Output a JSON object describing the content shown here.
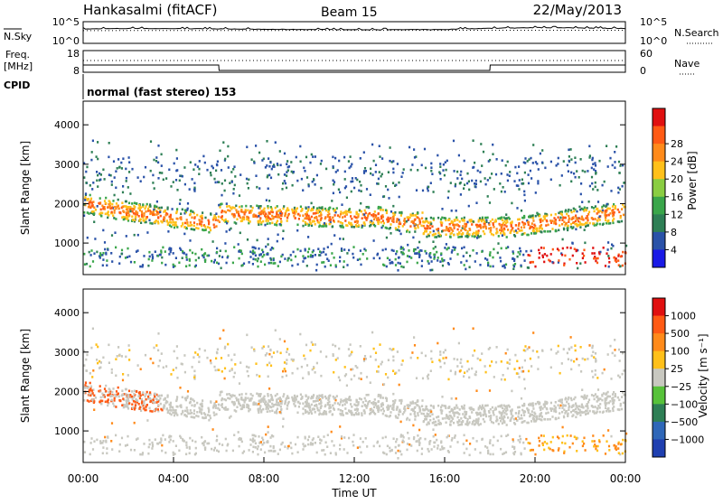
{
  "header": {
    "station": "Hankasalmi (fitACF)",
    "beam": "Beam 15",
    "date": "22/May/2013"
  },
  "left_labels": {
    "nsky": "N.Sky",
    "freq": "Freq.",
    "freq_unit": "[MHz]",
    "cpid": "CPID"
  },
  "right_labels": {
    "nsearch": "N.Search",
    "nave": "Nave"
  },
  "cpid_text": "normal (fast stereo) 153",
  "colors": {
    "power_scale": [
      "#1a1ae6",
      "#2a52a8",
      "#2e7f55",
      "#3aa64a",
      "#8acd42",
      "#ffc01a",
      "#ff8a1a",
      "#ff5a14",
      "#e01010"
    ],
    "velocity_scale": [
      "#1f3fb0",
      "#2f67b8",
      "#2e7f55",
      "#57c23a",
      "#c8c8c0",
      "#ffc01a",
      "#ff8a1a",
      "#ff5a14",
      "#e01010"
    ]
  },
  "chart_data": [
    {
      "type": "line",
      "name": "noise-panel",
      "left_ticks": [
        "10^5",
        "10^0"
      ],
      "right_ticks": [
        "10^5",
        "10^0"
      ],
      "series": [
        {
          "name": "N.Sky",
          "x": [
            "00:00",
            "02:00",
            "04:00",
            "06:00",
            "08:00",
            "10:00",
            "12:00",
            "14:00",
            "16:00",
            "18:00",
            "20:00",
            "22:00",
            "24:00"
          ],
          "values": [
            5000,
            8000,
            7000,
            6000,
            4000,
            3500,
            3000,
            3000,
            3500,
            9000,
            15000,
            12000,
            8000
          ]
        }
      ]
    },
    {
      "type": "line",
      "name": "frequency-panel",
      "left_ticks": [
        "18",
        "8"
      ],
      "right_ticks": [
        "60",
        "0"
      ],
      "series": [
        {
          "name": "Freq.",
          "x": [
            "00:00",
            "06:00",
            "06:01",
            "18:00",
            "18:01",
            "24:00"
          ],
          "values": [
            11,
            11,
            8,
            8,
            11,
            11
          ]
        }
      ]
    },
    {
      "type": "heatmap",
      "name": "power-panel",
      "ylabel": "Slant Range [km]",
      "y_ticks": [
        "1000",
        "2000",
        "3000",
        "4000"
      ],
      "ylim": [
        200,
        4600
      ],
      "colorbar_label": "Power [dB]",
      "colorbar_ticks": [
        "4",
        "8",
        "12",
        "16",
        "20",
        "24",
        "28"
      ]
    },
    {
      "type": "heatmap",
      "name": "velocity-panel",
      "ylabel": "Slant Range [km]",
      "y_ticks": [
        "1000",
        "2000",
        "3000",
        "4000"
      ],
      "ylim": [
        200,
        4600
      ],
      "colorbar_label": "Velocity [m s⁻¹]",
      "colorbar_ticks": [
        "1000",
        "500",
        "100",
        "25",
        "−25",
        "−100",
        "−500",
        "−1000"
      ],
      "xlabel": "Time UT",
      "x_ticks": [
        "00:00",
        "04:00",
        "08:00",
        "12:00",
        "16:00",
        "20:00",
        "00:00"
      ]
    }
  ]
}
